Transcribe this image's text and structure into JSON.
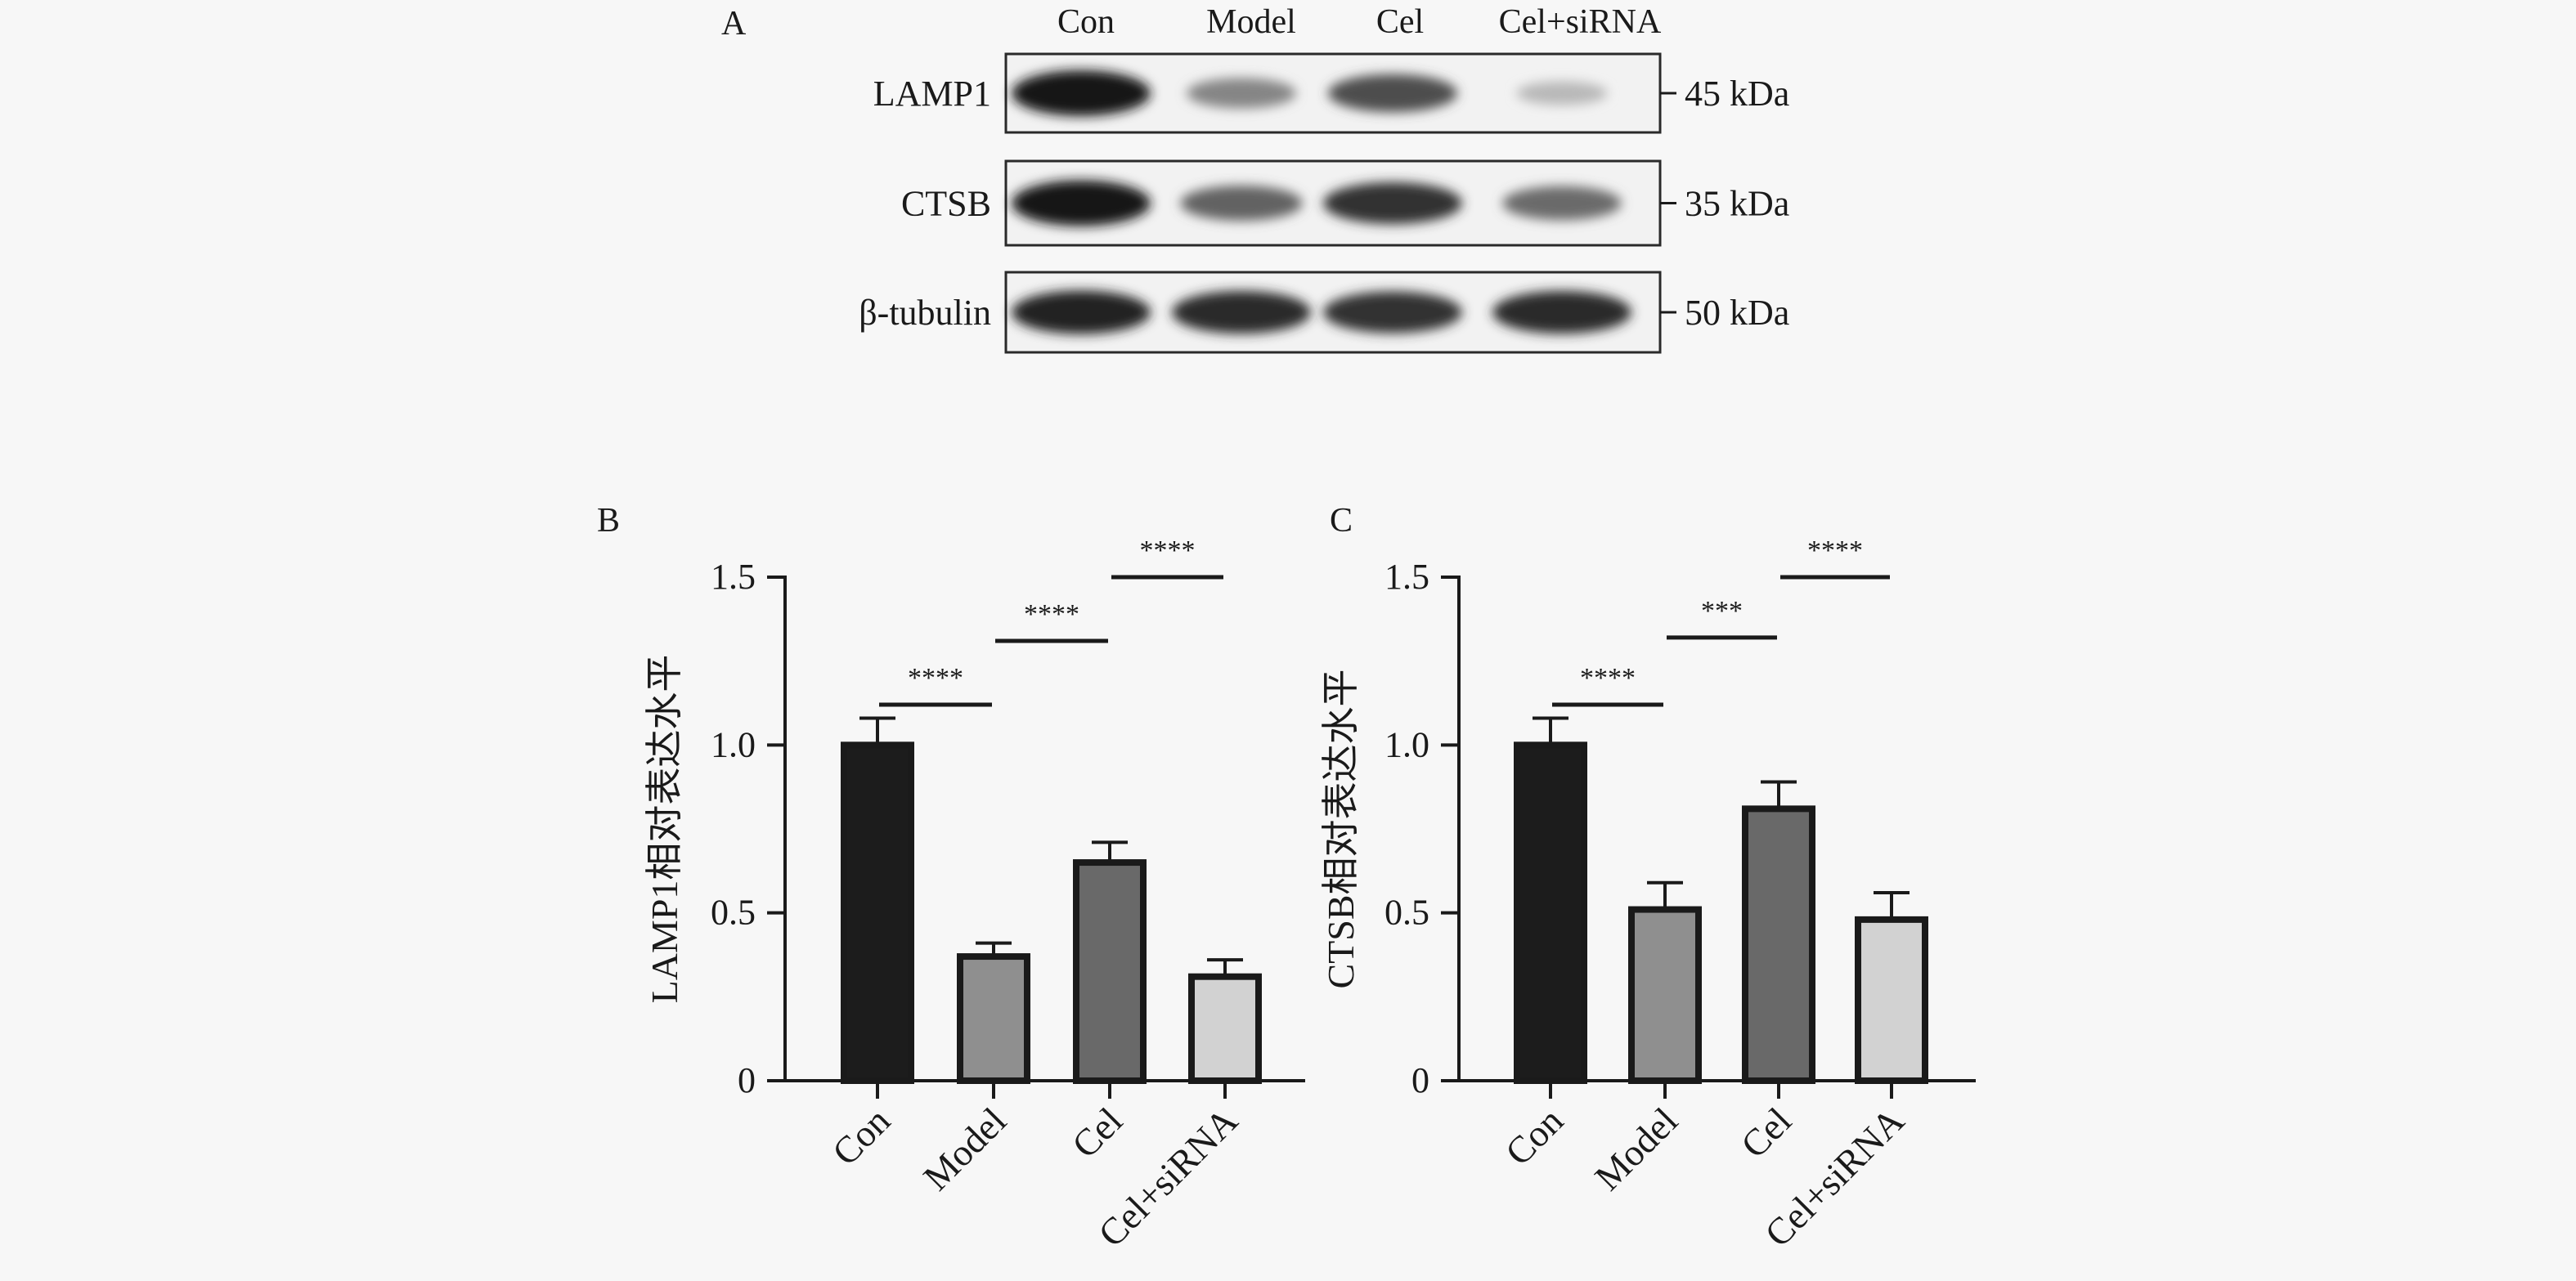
{
  "panel_labels": {
    "a": "A",
    "b": "B",
    "c": "C"
  },
  "blot": {
    "lanes": [
      "Con",
      "Model",
      "Cel",
      "Cel+siRNA"
    ],
    "rows": [
      {
        "protein": "LAMP1",
        "size": "45 kDa",
        "intensity": [
          1.0,
          0.45,
          0.72,
          0.2
        ]
      },
      {
        "protein": "CTSB",
        "size": "35 kDa",
        "intensity": [
          1.0,
          0.62,
          0.86,
          0.58
        ]
      },
      {
        "protein": "β-tubulin",
        "size": "50 kDa",
        "intensity": [
          0.92,
          0.9,
          0.86,
          0.9
        ]
      }
    ]
  },
  "colors": {
    "Con": "#1c1c1c",
    "Model": "#8f8f8f",
    "Cel": "#696969",
    "Cel+siRNA": "#d2d2d2"
  },
  "chart_data": [
    {
      "type": "bar",
      "panel": "B",
      "categories": [
        "Con",
        "Model",
        "Cel",
        "Cel+siRNA"
      ],
      "values": [
        1.0,
        0.37,
        0.65,
        0.31
      ],
      "errors": [
        0.08,
        0.04,
        0.06,
        0.05
      ],
      "ylabel": "LAMP1相对表达水平",
      "ylim": [
        0,
        1.5
      ],
      "yticks": [
        "0",
        "0.5",
        "1.0",
        "1.5"
      ],
      "significance": [
        {
          "from": 0,
          "to": 1,
          "y": 1.12,
          "label": "****"
        },
        {
          "from": 1,
          "to": 2,
          "y": 1.31,
          "label": "****"
        },
        {
          "from": 2,
          "to": 3,
          "y": 1.5,
          "label": "****"
        }
      ]
    },
    {
      "type": "bar",
      "panel": "C",
      "categories": [
        "Con",
        "Model",
        "Cel",
        "Cel+siRNA"
      ],
      "values": [
        1.0,
        0.51,
        0.81,
        0.48
      ],
      "errors": [
        0.08,
        0.08,
        0.08,
        0.08
      ],
      "ylabel": "CTSB相对表达水平",
      "ylim": [
        0,
        1.5
      ],
      "yticks": [
        "0",
        "0.5",
        "1.0",
        "1.5"
      ],
      "significance": [
        {
          "from": 0,
          "to": 1,
          "y": 1.12,
          "label": "****"
        },
        {
          "from": 1,
          "to": 2,
          "y": 1.32,
          "label": "***"
        },
        {
          "from": 2,
          "to": 3,
          "y": 1.5,
          "label": "****"
        }
      ]
    }
  ]
}
